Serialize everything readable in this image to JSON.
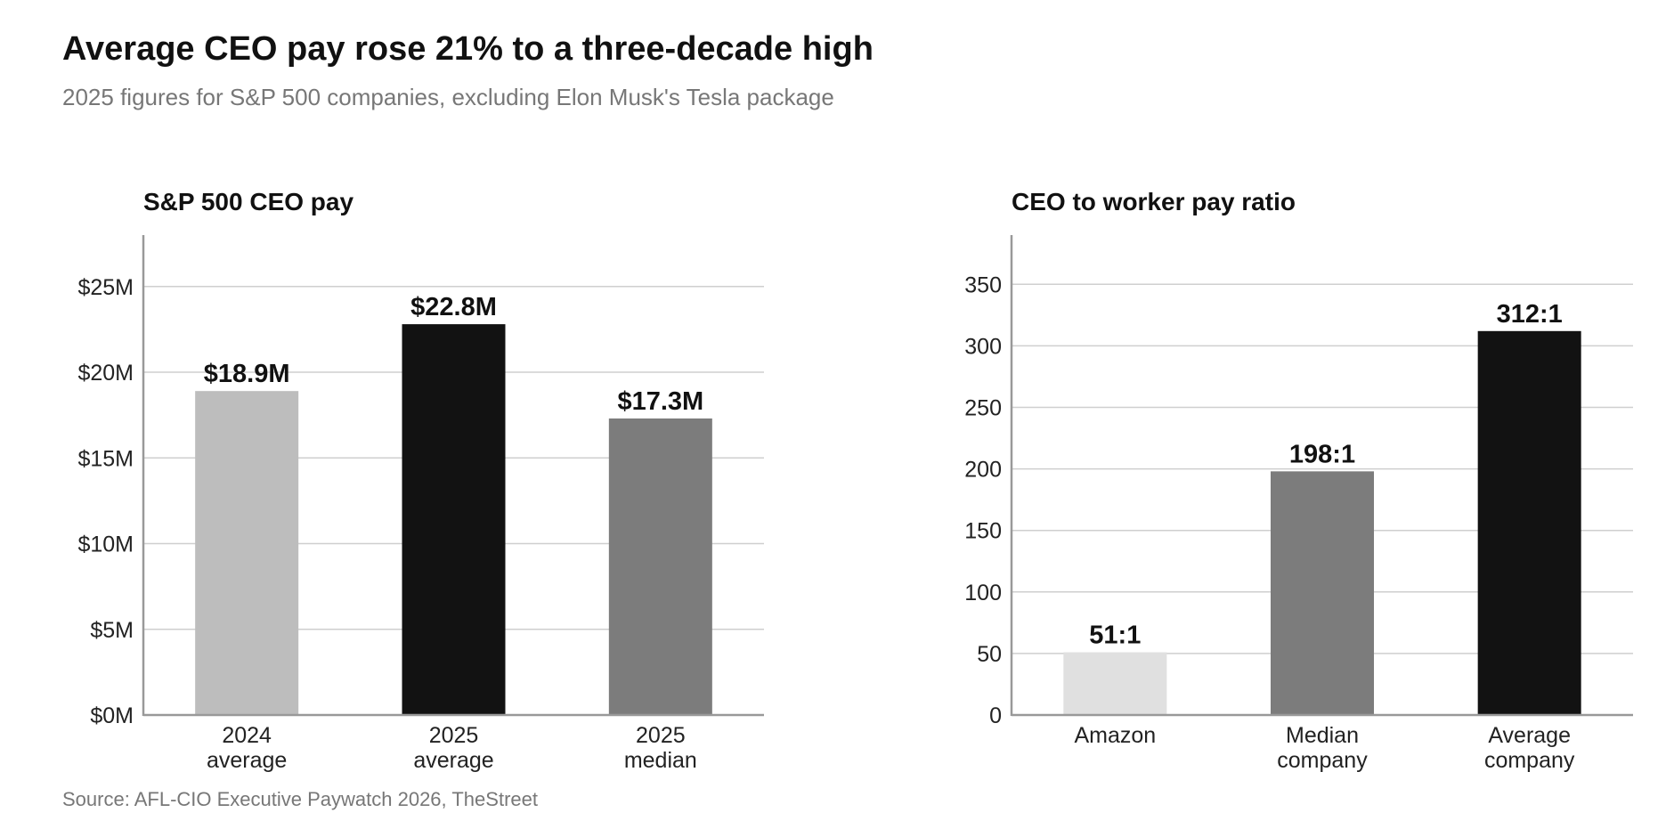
{
  "title": "Average CEO pay rose 21% to a three-decade high",
  "subtitle": "2025 figures for S&P 500 companies, excluding Elon Musk's Tesla package",
  "source": "Source: AFL-CIO Executive Paywatch 2026, TheStreet",
  "chart_data": [
    {
      "type": "bar",
      "title": "S&P 500 CEO pay",
      "categories": [
        [
          "2024",
          "average"
        ],
        [
          "2025",
          "average"
        ],
        [
          "2025",
          "median"
        ]
      ],
      "values": [
        18.9,
        22.8,
        17.3
      ],
      "data_labels": [
        "$18.9M",
        "$22.8M",
        "$17.3M"
      ],
      "colors": [
        "#bdbdbd",
        "#121212",
        "#7c7c7c"
      ],
      "yticks": [
        0,
        5,
        10,
        15,
        20,
        25
      ],
      "ytick_labels": [
        "$0M",
        "$5M",
        "$10M",
        "$15M",
        "$20M",
        "$25M"
      ],
      "ylim": [
        0,
        28
      ],
      "grid": true,
      "xlabel": "",
      "ylabel": ""
    },
    {
      "type": "bar",
      "title": "CEO to worker pay ratio",
      "categories": [
        [
          "Amazon"
        ],
        [
          "Median",
          "company"
        ],
        [
          "Average",
          "company"
        ]
      ],
      "values": [
        51,
        198,
        312
      ],
      "data_labels": [
        "51:1",
        "198:1",
        "312:1"
      ],
      "colors": [
        "#e0e0e0",
        "#7c7c7c",
        "#121212"
      ],
      "yticks": [
        0,
        50,
        100,
        150,
        200,
        250,
        300,
        350
      ],
      "ytick_labels": [
        "0",
        "50",
        "100",
        "150",
        "200",
        "250",
        "300",
        "350"
      ],
      "ylim": [
        0,
        390
      ],
      "grid": true,
      "xlabel": "",
      "ylabel": ""
    }
  ]
}
